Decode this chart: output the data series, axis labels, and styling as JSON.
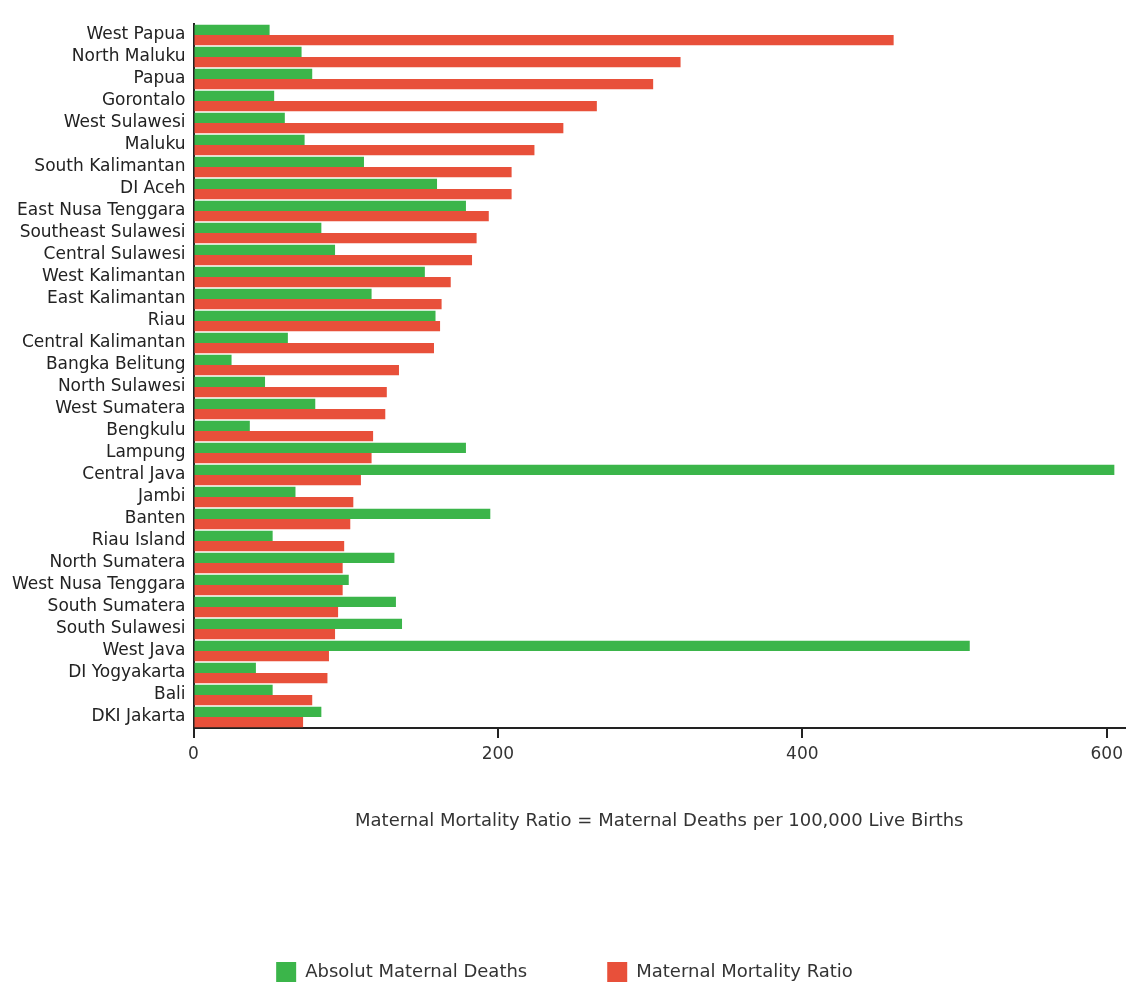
{
  "chart_data": {
    "type": "bar",
    "orientation": "horizontal",
    "xlabel": "Maternal Mortality Ratio = Maternal Deaths per 100,000 Live Births",
    "categories": [
      "West Papua",
      "North Maluku",
      "Papua",
      "Gorontalo",
      "West Sulawesi",
      "Maluku",
      "South Kalimantan",
      "DI Aceh",
      "East Nusa Tenggara",
      "Southeast Sulawesi",
      "Central Sulawesi",
      "West Kalimantan",
      "East Kalimantan",
      "Riau",
      "Central Kalimantan",
      "Bangka Belitung",
      "North Sulawesi",
      "West Sumatera",
      "Bengkulu",
      "Lampung",
      "Central Java",
      "Jambi",
      "Banten",
      "Riau Island",
      "North Sumatera",
      "West Nusa Tenggara",
      "South Sumatera",
      "South Sulawesi",
      "West Java",
      "DI Yogyakarta",
      "Bali",
      "DKI Jakarta"
    ],
    "series": [
      {
        "name": "Absolut Maternal Deaths",
        "color": "#3bb54a",
        "values": [
          50,
          71,
          78,
          53,
          60,
          73,
          112,
          160,
          179,
          84,
          93,
          152,
          117,
          159,
          62,
          25,
          47,
          80,
          37,
          179,
          605,
          67,
          195,
          52,
          132,
          102,
          133,
          137,
          510,
          41,
          52,
          84
        ]
      },
      {
        "name": "Maternal Mortality Ratio",
        "color": "#e8503a",
        "values": [
          460,
          320,
          302,
          265,
          243,
          224,
          209,
          209,
          194,
          186,
          183,
          169,
          163,
          162,
          158,
          135,
          127,
          126,
          118,
          117,
          110,
          105,
          103,
          99,
          98,
          98,
          95,
          93,
          89,
          88,
          78,
          72
        ]
      }
    ],
    "xlim": [
      0,
      612
    ],
    "xticks": [
      0,
      200,
      400,
      600
    ],
    "grid": false,
    "legend": "bottom"
  }
}
